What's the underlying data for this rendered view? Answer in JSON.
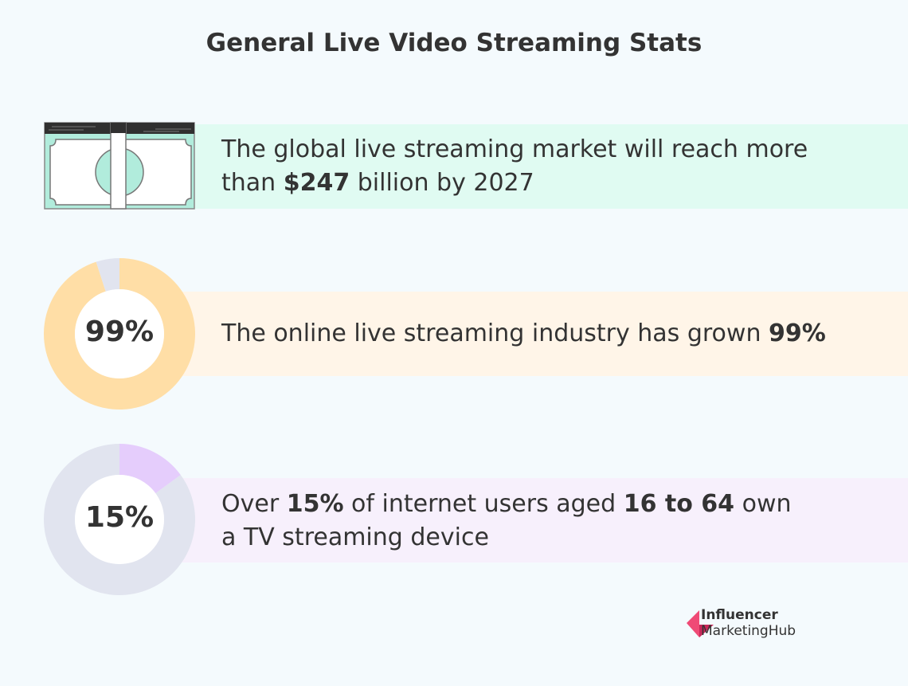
{
  "title": "General Live Video Streaming Stats",
  "stats": [
    {
      "icon": "money-bill-icon",
      "line1_pre": "The global live streaming market will reach more",
      "line2_pre": "than ",
      "line2_bold": "$247",
      "line2_post": " billion by 2027"
    },
    {
      "value_label": "99%",
      "value_percent": 99,
      "text_pre": "The online live streaming industry has grown ",
      "text_bold": "99%"
    },
    {
      "value_label": "15%",
      "value_percent": 15,
      "line1_pre": "Over ",
      "line1_bold1": "15%",
      "line1_mid": " of internet users aged ",
      "line1_bold2": "16 to 64",
      "line1_post": " own",
      "line2": "a TV streaming device"
    }
  ],
  "colors": {
    "mint": "#e0fbf2",
    "peach": "#fff5e8",
    "lavender": "#f7f0fc",
    "orange": "#ffdea6",
    "purple": "#e5cdfc",
    "gray": "#e1e4ef",
    "logo": "#e8436f"
  },
  "logo": {
    "line1": "Influencer",
    "line2": "MarketingHub"
  }
}
